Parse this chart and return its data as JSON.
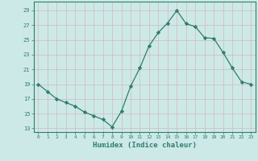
{
  "x": [
    0,
    1,
    2,
    3,
    4,
    5,
    6,
    7,
    8,
    9,
    10,
    11,
    12,
    13,
    14,
    15,
    16,
    17,
    18,
    19,
    20,
    21,
    22,
    23
  ],
  "y": [
    19,
    18,
    17,
    16.5,
    16,
    15.2,
    14.7,
    14.2,
    13.2,
    15.3,
    18.7,
    21.2,
    24.2,
    26.0,
    27.3,
    29.0,
    27.2,
    26.8,
    25.3,
    25.2,
    23.3,
    21.2,
    19.3,
    19.0
  ],
  "line_color": "#2e7d6e",
  "marker": "D",
  "marker_size": 2.2,
  "bg_color": "#cce9e7",
  "grid_color": "#b0d4d2",
  "tick_color": "#2e7d6e",
  "xlabel": "Humidex (Indice chaleur)",
  "xlabel_fontsize": 6.5,
  "ylabel_ticks": [
    13,
    15,
    17,
    19,
    21,
    23,
    25,
    27,
    29
  ],
  "xtick_labels": [
    "0",
    "1",
    "2",
    "3",
    "4",
    "5",
    "6",
    "7",
    "8",
    "9",
    "10",
    "11",
    "12",
    "13",
    "14",
    "15",
    "16",
    "17",
    "18",
    "19",
    "20",
    "21",
    "22",
    "23"
  ],
  "ylim": [
    12.5,
    30.2
  ],
  "xlim": [
    -0.5,
    23.5
  ]
}
